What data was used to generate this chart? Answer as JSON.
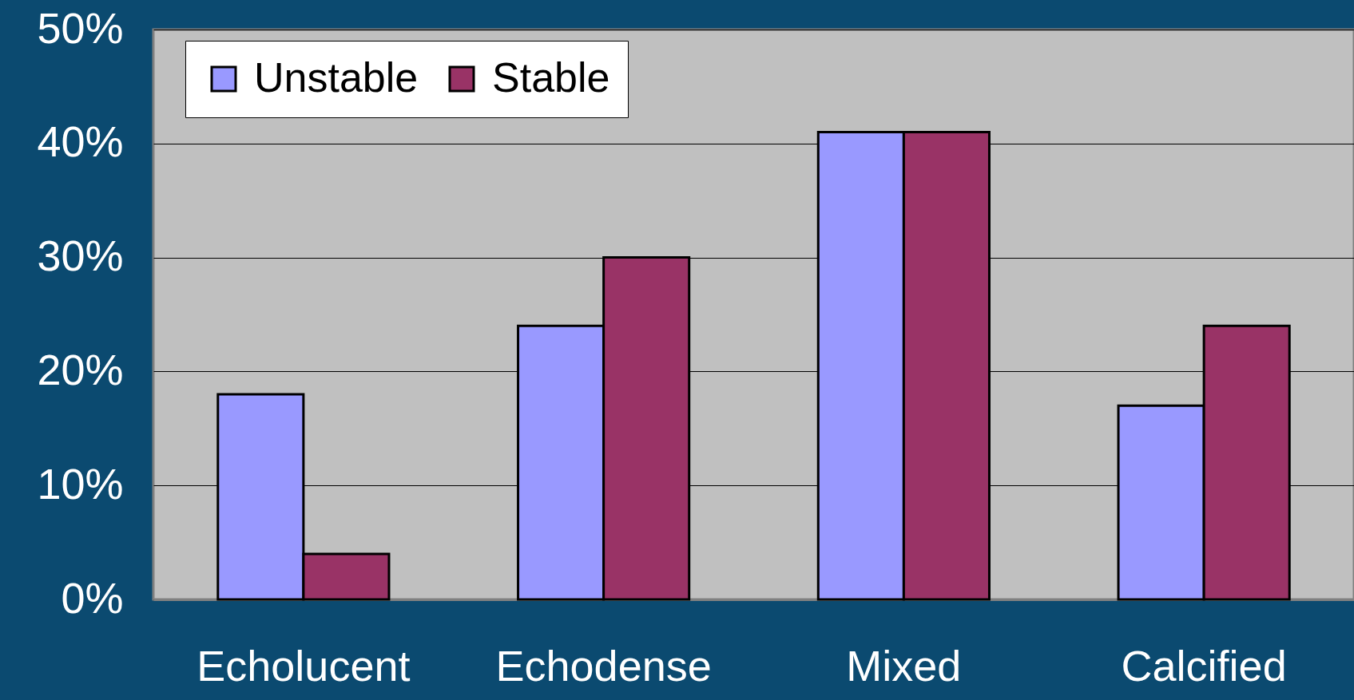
{
  "chart_data": {
    "type": "bar",
    "categories": [
      "Echolucent",
      "Echodense",
      "Mixed",
      "Calcified"
    ],
    "series": [
      {
        "name": "Unstable",
        "color": "#9999ff",
        "values": [
          18,
          24,
          41,
          17
        ]
      },
      {
        "name": "Stable",
        "color": "#993366",
        "values": [
          4,
          30,
          41,
          24
        ]
      }
    ],
    "ylim": [
      0,
      50
    ],
    "yticks": [
      {
        "value": 0,
        "label": "0%"
      },
      {
        "value": 10,
        "label": "10%"
      },
      {
        "value": 20,
        "label": "20%"
      },
      {
        "value": 30,
        "label": "30%"
      },
      {
        "value": 40,
        "label": "40%"
      },
      {
        "value": 50,
        "label": "50%"
      }
    ],
    "grid": "y",
    "legend": "top left"
  }
}
